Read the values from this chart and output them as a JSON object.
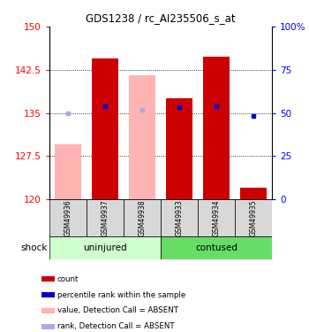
{
  "title": "GDS1238 / rc_AI235506_s_at",
  "samples": [
    "GSM49936",
    "GSM49937",
    "GSM49938",
    "GSM49933",
    "GSM49934",
    "GSM49935"
  ],
  "group_label": "shock",
  "group_names": [
    "uninjured",
    "contused"
  ],
  "ylim_left": [
    120,
    150
  ],
  "ylim_right": [
    0,
    100
  ],
  "yticks_left": [
    120,
    127.5,
    135,
    142.5,
    150
  ],
  "ytick_labels_left": [
    "120",
    "127.5",
    "135",
    "142.5",
    "150"
  ],
  "yticks_right": [
    0,
    25,
    50,
    75,
    100
  ],
  "ytick_labels_right": [
    "0",
    "25",
    "50",
    "75",
    "100%"
  ],
  "bar_values": [
    null,
    144.5,
    null,
    137.5,
    144.8,
    122.0
  ],
  "absent_bar_values": [
    129.5,
    null,
    141.5,
    null,
    null,
    null
  ],
  "absent_bar_color": "#ffb3b3",
  "dark_bar_color": "#cc0000",
  "rank_values": [
    null,
    136.2,
    null,
    136.0,
    136.2,
    134.5
  ],
  "rank_absent_values": [
    135.0,
    null,
    135.5,
    null,
    null,
    null
  ],
  "rank_color": "#0000cc",
  "rank_absent_color": "#aaaaee",
  "bar_bottom": 120,
  "uninjured_color": "#ccffcc",
  "contused_color": "#66dd66",
  "sample_box_color": "#d8d8d8",
  "legend_items": [
    {
      "label": "count",
      "color": "#cc0000"
    },
    {
      "label": "percentile rank within the sample",
      "color": "#0000cc"
    },
    {
      "label": "value, Detection Call = ABSENT",
      "color": "#ffb3b3"
    },
    {
      "label": "rank, Detection Call = ABSENT",
      "color": "#aaaaee"
    }
  ],
  "bar_width": 0.7
}
